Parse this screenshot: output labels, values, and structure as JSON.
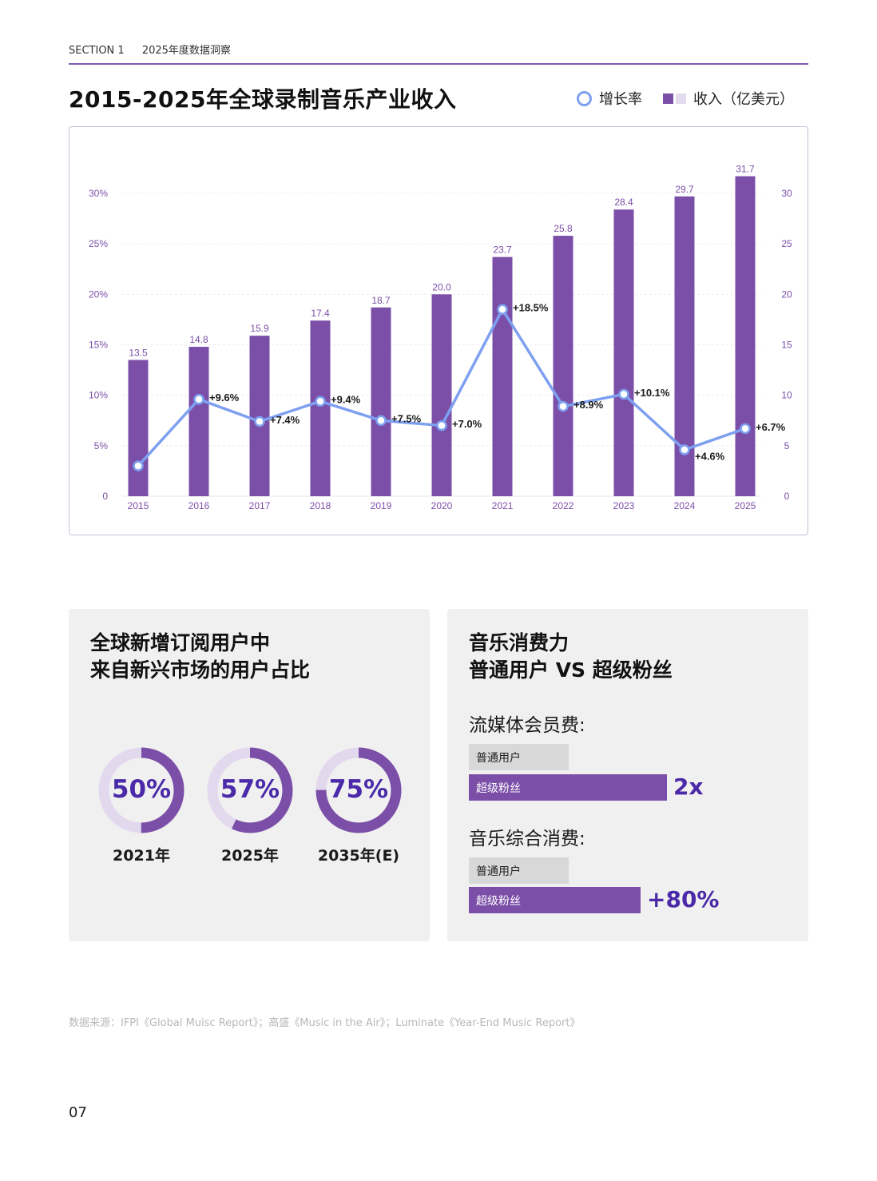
{
  "header": {
    "section": "SECTION 1",
    "subtitle": "2025年度数据洞察"
  },
  "title": "2015-2025年全球录制音乐产业收入",
  "legend": {
    "growth": "增长率",
    "revenue": "收入（亿美元）"
  },
  "colors": {
    "bar": "#7b4fa8",
    "line": "#7ea0f0",
    "accent_text": "#4a2aa8",
    "rule": "#7b5bb8"
  },
  "chart_data": {
    "type": "bar+line",
    "categories": [
      "2015",
      "2016",
      "2017",
      "2018",
      "2019",
      "2020",
      "2021",
      "2022",
      "2023",
      "2024",
      "2025"
    ],
    "series": [
      {
        "name": "收入（亿美元）",
        "type": "bar",
        "axis": "right",
        "values": [
          13.5,
          14.8,
          15.9,
          17.4,
          18.7,
          20.0,
          23.7,
          25.8,
          28.4,
          29.7,
          31.7
        ],
        "labels": [
          "13.5",
          "14.8",
          "15.9",
          "17.4",
          "18.7",
          "20.0",
          "23.7",
          "25.8",
          "28.4",
          "29.7",
          "31.7"
        ]
      },
      {
        "name": "增长率",
        "type": "line",
        "axis": "left",
        "values": [
          3.0,
          9.6,
          7.4,
          9.4,
          7.5,
          7.0,
          18.5,
          8.9,
          10.1,
          4.6,
          6.7
        ],
        "labels": [
          "",
          "+9.6%",
          "+7.4%",
          "+9.4%",
          "+7.5%",
          "+7.0%",
          "+18.5%",
          "+8.9%",
          "+10.1%",
          "+4.6%",
          "+6.7%"
        ]
      }
    ],
    "left_axis": {
      "ticks": [
        "0",
        "5%",
        "10%",
        "15%",
        "20%",
        "25%",
        "30%"
      ],
      "range": [
        0,
        30
      ]
    },
    "right_axis": {
      "ticks": [
        "0",
        "5",
        "10",
        "15",
        "20",
        "25",
        "30"
      ],
      "range": [
        0,
        30
      ]
    },
    "grid": true
  },
  "card1": {
    "title_line1": "全球新增订阅用户中",
    "title_line2": "来自新兴市场的用户占比",
    "donuts": [
      {
        "pct": "50%",
        "value": 50,
        "label": "2021年"
      },
      {
        "pct": "57%",
        "value": 57,
        "label": "2025年"
      },
      {
        "pct": "75%",
        "value": 75,
        "label": "2035年(E)"
      }
    ]
  },
  "card2": {
    "title_line1": "音乐消费力",
    "title_line2": "普通用户 VS 超级粉丝",
    "groups": [
      {
        "heading": "流媒体会员费:",
        "normal_label": "普通用户",
        "fan_label": "超级粉丝",
        "multiplier": "2x"
      },
      {
        "heading": "音乐综合消费:",
        "normal_label": "普通用户",
        "fan_label": "超级粉丝",
        "multiplier": "+80%"
      }
    ]
  },
  "source": "数据来源：IFPI《Global Muisc Report》；高盛《Music in the Air》；Luminate《Year-End Music Report》",
  "page_number": "07"
}
